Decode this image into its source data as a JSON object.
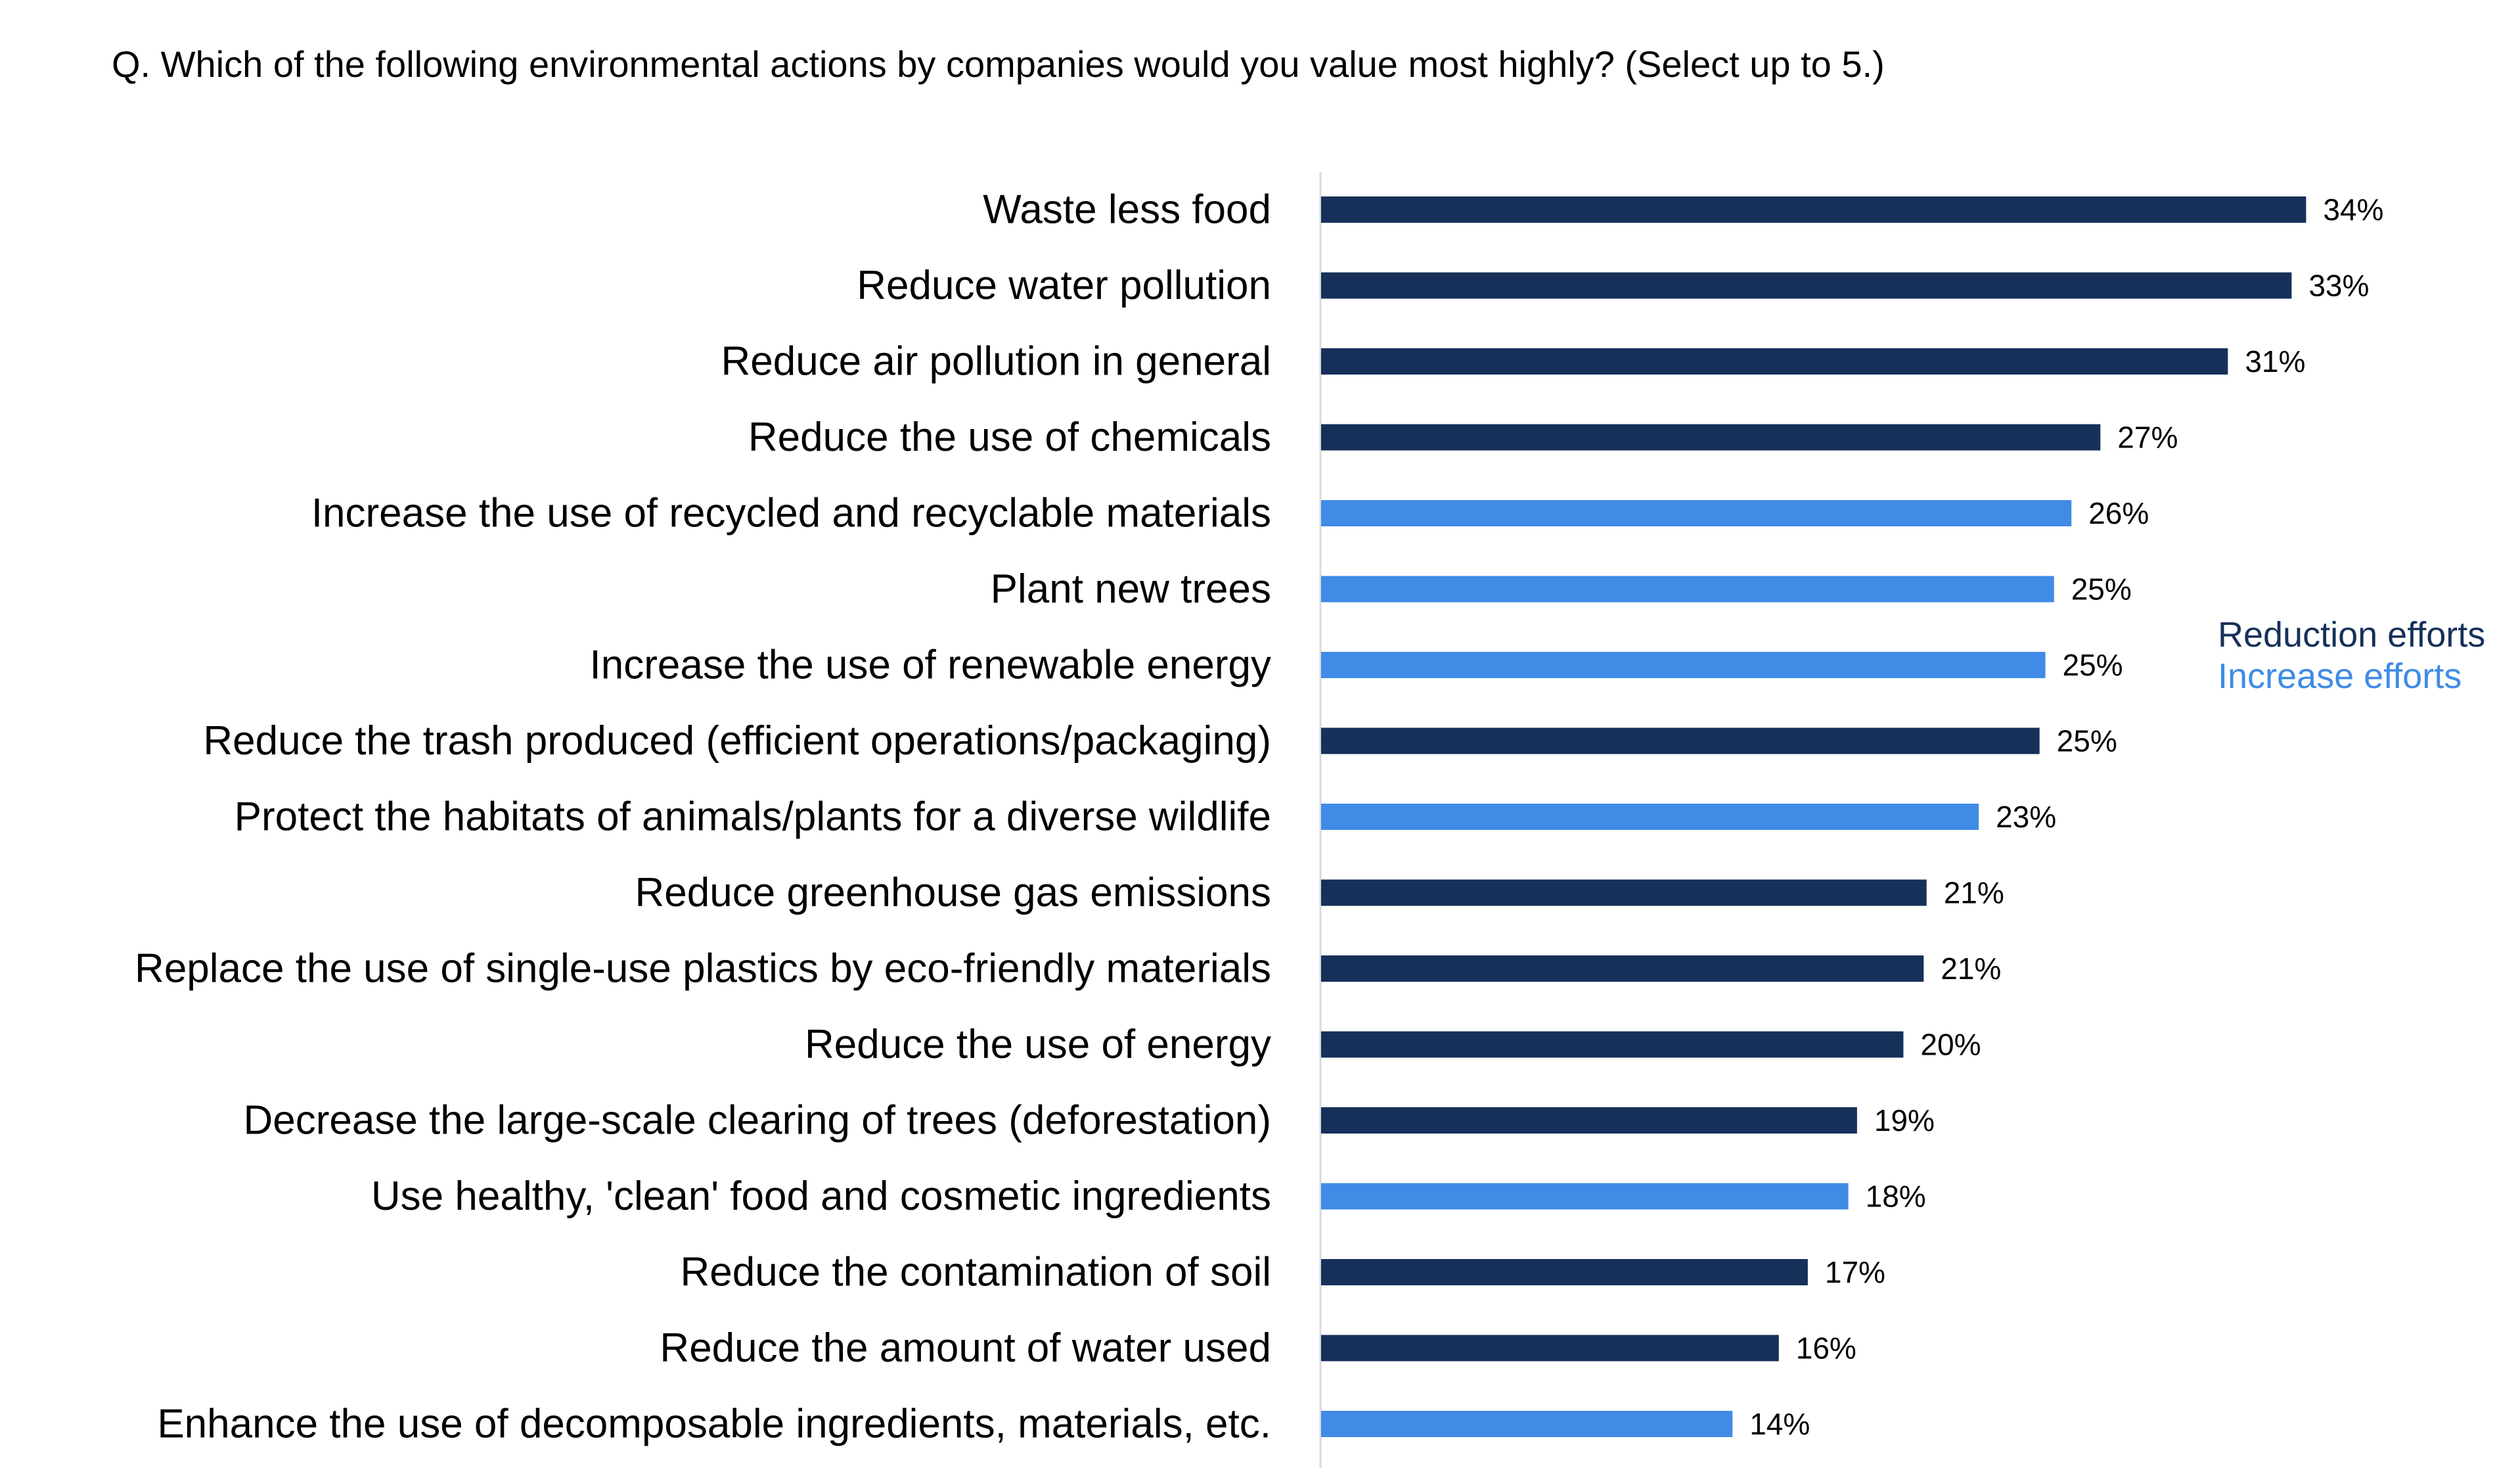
{
  "question": "Q. Which of the following environmental actions by companies would you value most highly? (Select up to 5.)",
  "colors": {
    "reduction": "#17305A",
    "increase": "#3F8BE6",
    "axis": "#D9D9D9"
  },
  "legend": {
    "reduction_label": "Reduction efforts",
    "increase_label": "Increase efforts"
  },
  "chart_data": {
    "type": "bar",
    "orientation": "horizontal",
    "title": "Q. Which of the following environmental actions by companies would you value most highly? (Select up to 5.)",
    "xlabel": "",
    "ylabel": "",
    "xlim": [
      0,
      34
    ],
    "grid": false,
    "legend_position": "right",
    "value_suffix": "%",
    "categories": [
      "Waste less food",
      "Reduce water pollution",
      "Reduce air pollution in general",
      "Reduce the use of chemicals",
      "Increase the use of recycled and recyclable materials",
      "Plant new trees",
      "Increase the use of renewable energy",
      "Reduce the trash produced (efficient operations/packaging)",
      "Protect the habitats of animals/plants for a diverse wildlife",
      "Reduce greenhouse gas emissions",
      "Replace the use of single-use plastics by eco-friendly materials",
      "Reduce the use of energy",
      "Decrease the large-scale clearing of trees (deforestation)",
      "Use healthy, 'clean' food and cosmetic ingredients",
      "Reduce the contamination of soil",
      "Reduce the amount of water used",
      "Enhance the use of decomposable ingredients, materials, etc."
    ],
    "values": [
      34,
      33,
      31,
      27,
      26,
      25,
      25,
      25,
      23,
      21,
      21,
      20,
      19,
      18,
      17,
      16,
      14
    ],
    "exact_values": [
      34.0,
      33.5,
      31.3,
      26.9,
      25.9,
      25.3,
      25.0,
      24.8,
      22.7,
      20.9,
      20.8,
      20.1,
      18.5,
      18.2,
      16.8,
      15.8,
      14.2
    ],
    "groups": [
      "reduction",
      "reduction",
      "reduction",
      "reduction",
      "increase",
      "increase",
      "increase",
      "reduction",
      "increase",
      "reduction",
      "reduction",
      "reduction",
      "reduction",
      "increase",
      "reduction",
      "reduction",
      "increase"
    ],
    "series": [
      {
        "name": "Reduction efforts",
        "group": "reduction"
      },
      {
        "name": "Increase efforts",
        "group": "increase"
      }
    ]
  }
}
